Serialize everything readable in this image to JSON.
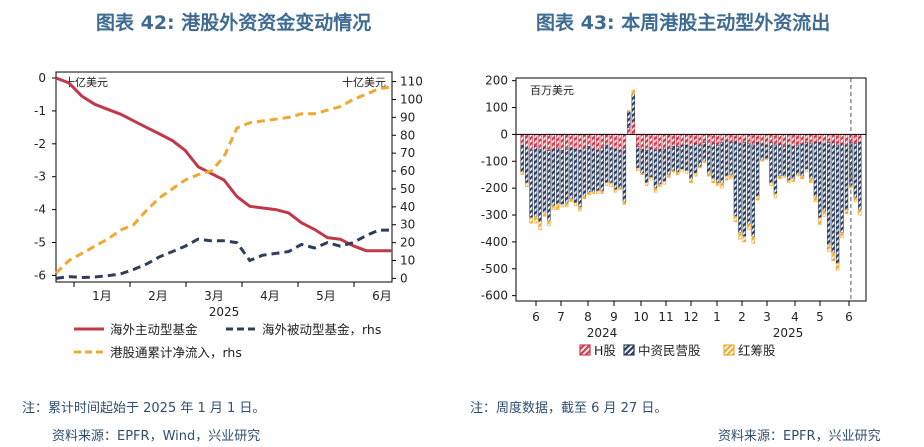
{
  "left": {
    "title": "图表 42: 港股外资资金变动情况",
    "note": "注：累计时间起始于 2025 年 1 月 1 日。",
    "source": "资料来源：EPFR，Wind，兴业研究",
    "chart_data": {
      "type": "line",
      "unit_left": "十亿美元",
      "unit_right": "十亿美元",
      "year_label": "2025",
      "x_tick_labels": [
        "1月",
        "2月",
        "3月",
        "4月",
        "5月",
        "6月"
      ],
      "x_domain": [
        0,
        26
      ],
      "y_left_range": [
        -6.2,
        0
      ],
      "y_left_ticks": [
        0,
        -1,
        -2,
        -3,
        -4,
        -5,
        -6
      ],
      "y_right_range": [
        -2,
        112
      ],
      "y_right_ticks": [
        110,
        100,
        90,
        80,
        70,
        60,
        50,
        40,
        30,
        20,
        10,
        0
      ],
      "series": [
        {
          "name": "海外主动型基金",
          "axis": "left",
          "color": "#c0394b",
          "style": "solid",
          "x": [
            0,
            1,
            2,
            3,
            4,
            5,
            6,
            7,
            8,
            9,
            10,
            11,
            12,
            13,
            14,
            15,
            16,
            17,
            18,
            19,
            20,
            21,
            22,
            23,
            24,
            25,
            26
          ],
          "y": [
            0,
            -0.15,
            -0.55,
            -0.8,
            -0.95,
            -1.1,
            -1.3,
            -1.5,
            -1.7,
            -1.9,
            -2.2,
            -2.7,
            -2.9,
            -3.1,
            -3.6,
            -3.9,
            -3.95,
            -4.0,
            -4.1,
            -4.4,
            -4.6,
            -4.85,
            -4.9,
            -5.1,
            -5.25,
            -5.25,
            -5.25
          ]
        },
        {
          "name": "海外被动型基金，rhs",
          "axis": "right",
          "color": "#2d3e5e",
          "style": "dashed",
          "x": [
            0,
            1,
            2,
            3,
            4,
            5,
            6,
            7,
            8,
            9,
            10,
            11,
            12,
            13,
            14,
            15,
            16,
            17,
            18,
            19,
            20,
            21,
            22,
            23,
            24,
            25,
            26
          ],
          "y": [
            0,
            1,
            0.5,
            0.8,
            1.5,
            2.5,
            5,
            8,
            12,
            15,
            18,
            22,
            21,
            21,
            20,
            10,
            13,
            14,
            15,
            19,
            17,
            20,
            18,
            20,
            24,
            27,
            27
          ]
        },
        {
          "name": "港股通累计净流入，rhs",
          "axis": "right",
          "color": "#f0a830",
          "style": "dashed",
          "x": [
            0,
            1,
            2,
            3,
            4,
            5,
            6,
            7,
            8,
            9,
            10,
            11,
            12,
            13,
            14,
            15,
            16,
            17,
            18,
            19,
            20,
            21,
            22,
            23,
            24,
            25,
            26
          ],
          "y": [
            3,
            10,
            14,
            18,
            22,
            27,
            30,
            38,
            45,
            50,
            55,
            58,
            60,
            68,
            84,
            87,
            88,
            89,
            90,
            92,
            92,
            94,
            96,
            100,
            103,
            106,
            107
          ]
        }
      ]
    }
  },
  "right": {
    "title": "图表 43: 本周港股主动型外资流出",
    "note": "注：周度数据，截至 6 月 27 日。",
    "source": "资料来源：EPFR，兴业研究",
    "chart_data": {
      "type": "bar",
      "stacked": true,
      "unit": "百万美元",
      "ylim": [
        -620,
        210
      ],
      "y_ticks": [
        200,
        100,
        0,
        -100,
        -200,
        -300,
        -400,
        -500,
        -600
      ],
      "x_tick_labels": [
        "6",
        "7",
        "8",
        "9",
        "10",
        "11",
        "12",
        "1",
        "2",
        "3",
        "4",
        "5",
        "6"
      ],
      "year_labels": [
        "2024",
        "2025"
      ],
      "series": [
        {
          "name": "H股",
          "color": "#d23a4a",
          "values": [
            -40,
            -50,
            -60,
            -45,
            -55,
            -50,
            -60,
            -55,
            -50,
            -60,
            -55,
            -50,
            -55,
            -60,
            -50,
            -45,
            -55,
            -60,
            -50,
            -40,
            -50,
            -55,
            -60,
            -50,
            25,
            50,
            -45,
            -55,
            -60,
            -50,
            -60,
            -55,
            -55,
            -50,
            -45,
            -45,
            -40,
            -40,
            -45,
            -35,
            -40,
            -30,
            -45,
            -35,
            -40,
            -30,
            -25,
            -30,
            -25,
            -35,
            -30,
            -35,
            -40,
            -30,
            -35,
            -40,
            -30,
            -40,
            -35,
            -45,
            -40,
            -45,
            -40,
            -35,
            -30,
            -35,
            -30,
            -30,
            -35,
            -30,
            -30,
            -40,
            -35,
            -40,
            -30,
            -35,
            -30
          ]
        },
        {
          "name": "中资民营股",
          "color": "#2d3e5e",
          "values": [
            -100,
            -130,
            -250,
            -260,
            -270,
            -240,
            -260,
            -210,
            -210,
            -200,
            -200,
            -190,
            -200,
            -210,
            -180,
            -170,
            -160,
            -150,
            -160,
            -140,
            -130,
            -150,
            -140,
            -200,
            60,
            100,
            -80,
            -90,
            -120,
            -110,
            -140,
            -130,
            -120,
            -100,
            -90,
            -95,
            -90,
            -95,
            -120,
            -110,
            -80,
            -70,
            -100,
            -130,
            -140,
            -150,
            -130,
            -120,
            -280,
            -330,
            -350,
            -300,
            -340,
            -200,
            -60,
            -50,
            -150,
            -180,
            -120,
            -110,
            -130,
            -120,
            -110,
            -120,
            -100,
            -130,
            -200,
            -280,
            -250,
            -380,
            -410,
            -440,
            -330,
            -240,
            -160,
            -200,
            -250
          ]
        },
        {
          "name": "红筹股",
          "color": "#f0a830",
          "values": [
            -10,
            -15,
            -20,
            -25,
            -30,
            -15,
            -20,
            -15,
            -20,
            -10,
            -15,
            -10,
            -10,
            -15,
            -10,
            -10,
            -5,
            -10,
            -10,
            -10,
            -15,
            -10,
            -5,
            -10,
            5,
            15,
            -10,
            -5,
            -10,
            -10,
            -15,
            -10,
            -10,
            -10,
            -5,
            -10,
            -10,
            -10,
            -15,
            -10,
            -5,
            -5,
            -10,
            -15,
            -10,
            -20,
            -15,
            -15,
            -20,
            -25,
            -20,
            -20,
            -25,
            -15,
            -5,
            -5,
            -10,
            -15,
            -10,
            -5,
            -10,
            -10,
            -5,
            -10,
            -10,
            -15,
            -20,
            -25,
            -20,
            -25,
            -30,
            -25,
            -20,
            -15,
            -10,
            -15,
            -20
          ]
        }
      ]
    }
  }
}
